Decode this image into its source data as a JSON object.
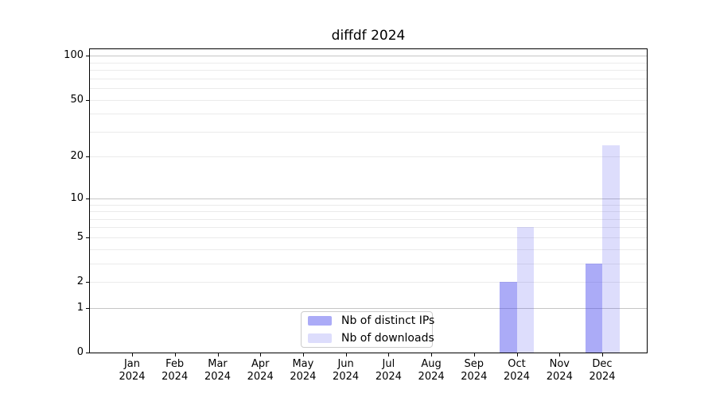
{
  "chart_data": {
    "type": "bar",
    "title": "diffdf 2024",
    "year": "2024",
    "months": [
      "Jan",
      "Feb",
      "Mar",
      "Apr",
      "May",
      "Jun",
      "Jul",
      "Aug",
      "Sep",
      "Oct",
      "Nov",
      "Dec"
    ],
    "series": [
      {
        "name": "Nb of distinct IPs",
        "color": "#4444ee73",
        "values": [
          0,
          0,
          0,
          0,
          0,
          0,
          0,
          0,
          0,
          2,
          0,
          3
        ]
      },
      {
        "name": "Nb of downloads",
        "color": "#4444ee2e",
        "values": [
          0,
          0,
          0,
          0,
          0,
          0,
          0,
          0,
          0,
          6,
          0,
          24
        ]
      }
    ],
    "yscale": "log1p",
    "ylim": [
      0,
      113
    ],
    "ytick_values": [
      0,
      1,
      2,
      5,
      10,
      20,
      50,
      100
    ],
    "major_gridlines": [
      1,
      10,
      100
    ],
    "minor_gridlines": [
      2,
      3,
      4,
      5,
      6,
      7,
      8,
      9,
      20,
      30,
      40,
      50,
      60,
      70,
      80,
      90
    ],
    "grid_major_color": "#c6c6c6",
    "grid_minor_color": "#ebebeb",
    "axis_color": "#000000",
    "legend_position": "lower center",
    "xlabel": "",
    "ylabel": ""
  }
}
